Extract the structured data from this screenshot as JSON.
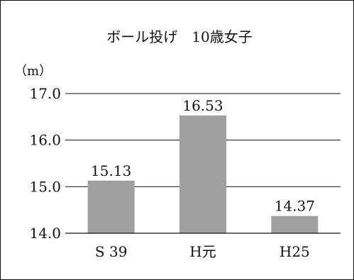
{
  "chart_data": {
    "type": "bar",
    "title": "ボール投げ　10歳女子",
    "ylabel": "（m）",
    "xlabel": "",
    "categories": [
      "S 39",
      "H元",
      "H25"
    ],
    "values": [
      15.13,
      16.53,
      14.37
    ],
    "value_labels": [
      "15.13",
      "16.53",
      "14.37"
    ],
    "y_ticks": [
      14.0,
      15.0,
      16.0,
      17.0
    ],
    "y_tick_labels": [
      "14.0",
      "15.0",
      "16.0",
      "17.0"
    ],
    "ylim": [
      14.0,
      17.0
    ],
    "grid": true,
    "legend": "none",
    "bar_color": "#a0a0a0",
    "grid_color": "#111111",
    "text_color": "#111111"
  }
}
